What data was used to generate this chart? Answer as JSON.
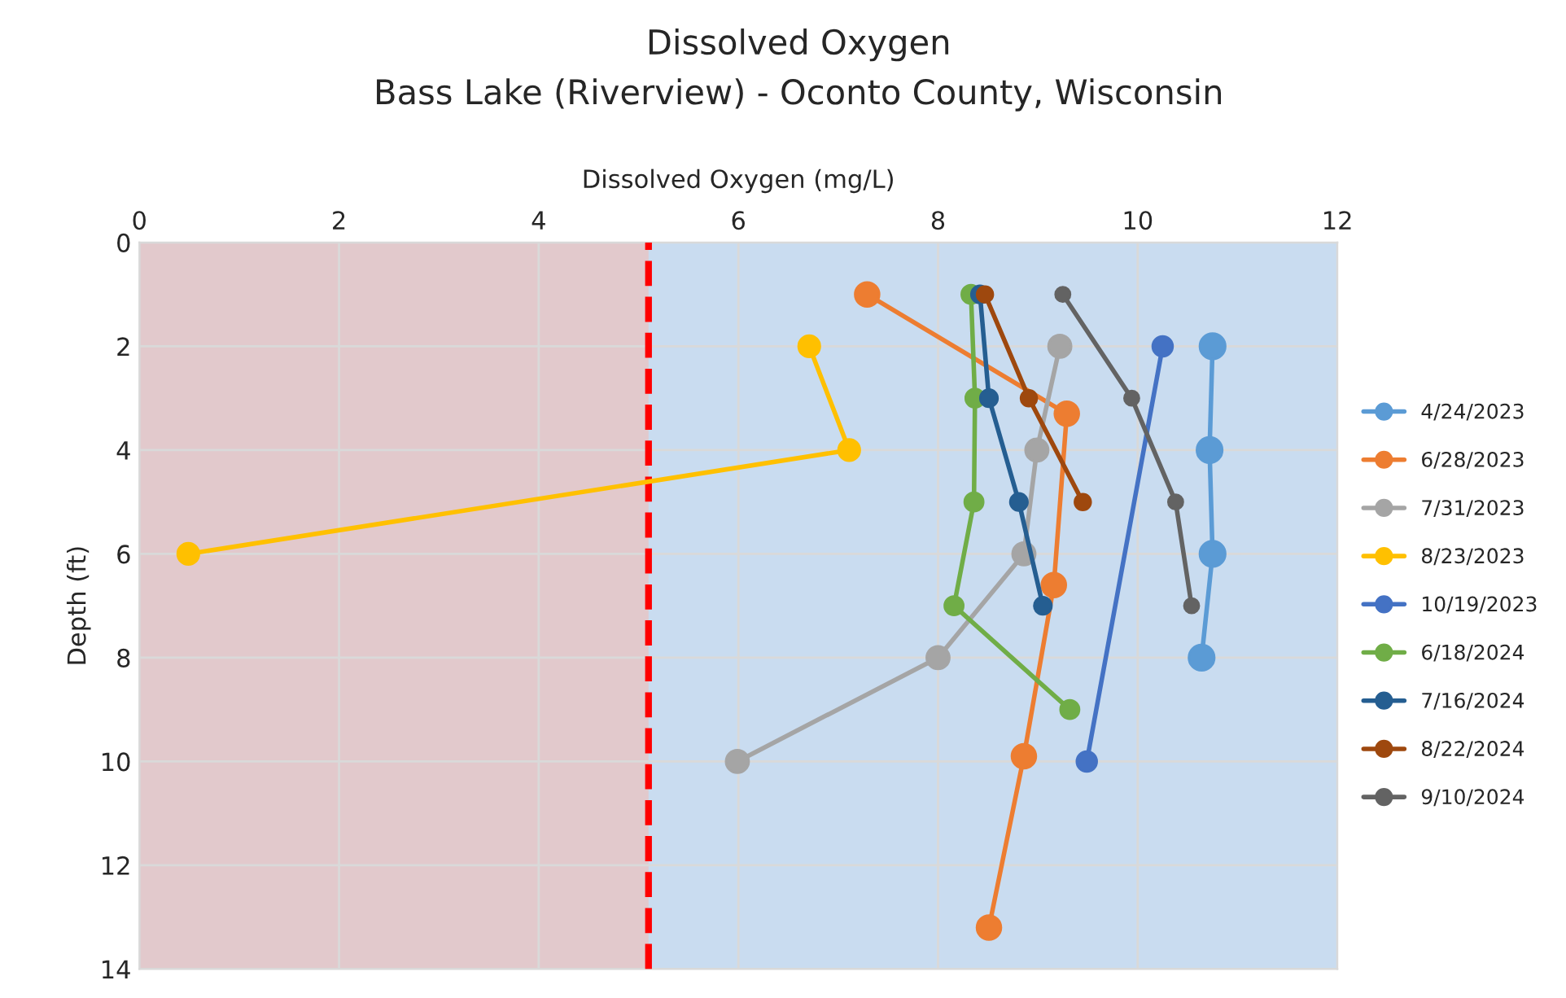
{
  "chart_data": {
    "type": "line",
    "title": "Dissolved Oxygen",
    "subtitle": "Bass Lake (Riverview) - Oconto County, Wisconsin",
    "xlabel": "Dissolved Oxygen (mg/L)",
    "ylabel": "Depth (ft)",
    "xlim": [
      0,
      12
    ],
    "xticks": [
      0,
      2,
      4,
      6,
      8,
      10,
      12
    ],
    "ylim": [
      14,
      0
    ],
    "yticks": [
      0,
      2,
      4,
      6,
      8,
      10,
      12,
      14
    ],
    "grid": true,
    "legend": "right",
    "marker": "circle",
    "line_style": "solid",
    "ref_lines": [
      {
        "axis": "x",
        "value": 5.1,
        "color": "#ff0000",
        "line_style": "dashed"
      }
    ],
    "bands": [
      {
        "axis": "x",
        "from": 0,
        "to": 5.1,
        "color": "#e2c9cc"
      }
    ],
    "series": [
      {
        "name": "4/24/2023",
        "color": "#5b9bd5",
        "x": [
          10.75,
          10.72,
          10.75,
          10.64
        ],
        "values": [
          2,
          4,
          6,
          8
        ]
      },
      {
        "name": "6/28/2023",
        "color": "#ed7d31",
        "x": [
          7.29,
          9.29,
          9.16,
          8.86,
          8.51
        ],
        "values": [
          1,
          3.3,
          6.6,
          9.9,
          13.2
        ]
      },
      {
        "name": "7/31/2023",
        "color": "#a5a5a5",
        "x": [
          9.22,
          8.99,
          8.86,
          8.0,
          5.99
        ],
        "values": [
          2,
          4,
          6,
          8,
          10
        ]
      },
      {
        "name": "8/23/2023",
        "color": "#ffc000",
        "x": [
          6.71,
          7.11,
          0.49
        ],
        "values": [
          2,
          4,
          6
        ]
      },
      {
        "name": "10/19/2023",
        "color": "#4472c4",
        "x": [
          10.25,
          9.49
        ],
        "values": [
          2,
          10
        ]
      },
      {
        "name": "6/18/2024",
        "color": "#70ad47",
        "x": [
          8.33,
          8.37,
          8.36,
          8.16,
          9.32
        ],
        "values": [
          1,
          3,
          5,
          7,
          9
        ]
      },
      {
        "name": "7/16/2024",
        "color": "#255e91",
        "x": [
          8.42,
          8.51,
          8.81,
          9.05
        ],
        "values": [
          1,
          3,
          5,
          7
        ]
      },
      {
        "name": "8/22/2024",
        "color": "#9e480e",
        "x": [
          8.47,
          8.91,
          9.45
        ],
        "values": [
          1,
          3,
          5
        ]
      },
      {
        "name": "9/10/2024",
        "color": "#636363",
        "x": [
          9.25,
          9.94,
          10.38,
          10.54
        ],
        "values": [
          1,
          3,
          5,
          7
        ]
      }
    ]
  }
}
